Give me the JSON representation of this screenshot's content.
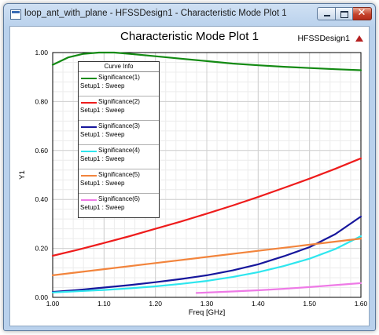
{
  "window": {
    "title": "loop_ant_with_plane - HFSSDesign1 - Characteristic Mode Plot 1",
    "controls": {
      "minimize": "minimize",
      "maximize": "maximize",
      "close": "✕"
    }
  },
  "plot": {
    "title": "Characteristic Mode Plot 1",
    "design_label": "HFSSDesign1"
  },
  "legend": {
    "header": "Curve Info",
    "entries": [
      {
        "name": "Significance(1)",
        "setup": "Setup1 : Sweep",
        "color": "#138a13"
      },
      {
        "name": "Significance(2)",
        "setup": "Setup1 : Sweep",
        "color": "#ee1c1c"
      },
      {
        "name": "Significance(3)",
        "setup": "Setup1 : Sweep",
        "color": "#16169c"
      },
      {
        "name": "Significance(4)",
        "setup": "Setup1 : Sweep",
        "color": "#2ee6ee"
      },
      {
        "name": "Significance(5)",
        "setup": "Setup1 : Sweep",
        "color": "#f2843c"
      },
      {
        "name": "Significance(6)",
        "setup": "Setup1 : Sweep",
        "color": "#ee7ae6"
      }
    ]
  },
  "chart_data": {
    "type": "line",
    "title": "Characteristic Mode Plot 1",
    "xlabel": "Freq [GHz]",
    "ylabel": "Y1",
    "xlim": [
      1.0,
      1.6
    ],
    "ylim": [
      0.0,
      1.0
    ],
    "xticks": [
      "1.00",
      "1.10",
      "1.20",
      "1.30",
      "1.40",
      "1.50",
      "1.60"
    ],
    "yticks": [
      "0.00",
      "0.20",
      "0.40",
      "0.60",
      "0.80",
      "1.00"
    ],
    "grid": true,
    "legend_position": "top-left",
    "series": [
      {
        "name": "Significance(1)",
        "color": "#138a13",
        "x": [
          1.0,
          1.03,
          1.06,
          1.09,
          1.12,
          1.15,
          1.2,
          1.25,
          1.3,
          1.35,
          1.4,
          1.45,
          1.5,
          1.55,
          1.6
        ],
        "y": [
          0.95,
          0.98,
          0.995,
          1.0,
          1.0,
          0.995,
          0.985,
          0.975,
          0.965,
          0.955,
          0.948,
          0.942,
          0.937,
          0.932,
          0.928
        ]
      },
      {
        "name": "Significance(2)",
        "color": "#ee1c1c",
        "x": [
          1.0,
          1.05,
          1.1,
          1.15,
          1.2,
          1.25,
          1.3,
          1.35,
          1.4,
          1.45,
          1.5,
          1.55,
          1.6
        ],
        "y": [
          0.17,
          0.195,
          0.222,
          0.25,
          0.28,
          0.31,
          0.342,
          0.375,
          0.41,
          0.447,
          0.485,
          0.525,
          0.568
        ]
      },
      {
        "name": "Significance(3)",
        "color": "#16169c",
        "x": [
          1.0,
          1.05,
          1.1,
          1.15,
          1.2,
          1.25,
          1.3,
          1.35,
          1.4,
          1.45,
          1.5,
          1.55,
          1.6
        ],
        "y": [
          0.022,
          0.03,
          0.04,
          0.05,
          0.062,
          0.075,
          0.09,
          0.11,
          0.135,
          0.168,
          0.205,
          0.258,
          0.33
        ]
      },
      {
        "name": "Significance(4)",
        "color": "#2ee6ee",
        "x": [
          1.0,
          1.05,
          1.1,
          1.15,
          1.2,
          1.25,
          1.3,
          1.35,
          1.4,
          1.45,
          1.5,
          1.55,
          1.6
        ],
        "y": [
          0.02,
          0.025,
          0.03,
          0.037,
          0.045,
          0.055,
          0.067,
          0.083,
          0.103,
          0.128,
          0.158,
          0.197,
          0.25
        ]
      },
      {
        "name": "Significance(5)",
        "color": "#f2843c",
        "x": [
          1.0,
          1.1,
          1.2,
          1.3,
          1.4,
          1.5,
          1.6
        ],
        "y": [
          0.09,
          0.115,
          0.14,
          0.165,
          0.19,
          0.215,
          0.24
        ]
      },
      {
        "name": "Significance(6)",
        "color": "#ee7ae6",
        "x": [
          1.28,
          1.35,
          1.4,
          1.45,
          1.5,
          1.55,
          1.6
        ],
        "y": [
          0.018,
          0.024,
          0.029,
          0.035,
          0.042,
          0.05,
          0.058
        ]
      }
    ]
  }
}
